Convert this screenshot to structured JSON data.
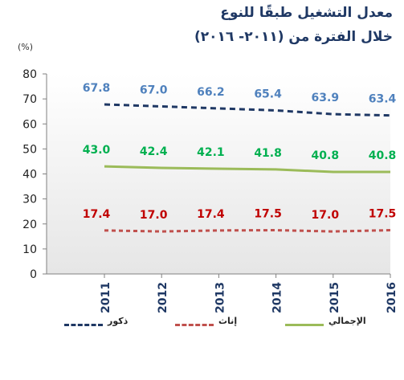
{
  "title": "معدل التشغيل طبقًا للنوع",
  "subtitle": "خلال الفترة من (٢٠١١- ٢٠١٦)",
  "unit": "(%)",
  "colors": {
    "males": "#1f3864",
    "females": "#c0504d",
    "total": "#9bbb59",
    "males_label": "#4f81bd",
    "females_label": "#c00000",
    "total_label": "#00b050"
  },
  "chart_data": {
    "type": "line",
    "categories": [
      "2011",
      "2012",
      "2013",
      "2014",
      "2015",
      "2016"
    ],
    "ylim": [
      0,
      80
    ],
    "yticks": [
      "0",
      "10",
      "20",
      "30",
      "40",
      "50",
      "60",
      "70",
      "80"
    ],
    "series": [
      {
        "name": "ذكور",
        "values": [
          67.8,
          67.0,
          66.2,
          65.4,
          63.9,
          63.4
        ],
        "labels": [
          "67.8",
          "67.0",
          "66.2",
          "65.4",
          "63.9",
          "63.4"
        ],
        "style": "dashed"
      },
      {
        "name": "الإجمالي",
        "values": [
          43.0,
          42.4,
          42.1,
          41.8,
          40.8,
          40.8
        ],
        "labels": [
          "43.0",
          "42.4",
          "42.1",
          "41.8",
          "40.8",
          "40.8"
        ],
        "style": "solid"
      },
      {
        "name": "إناث",
        "values": [
          17.4,
          17.0,
          17.4,
          17.5,
          17.0,
          17.5
        ],
        "labels": [
          "17.4",
          "17.0",
          "17.4",
          "17.5",
          "17.0",
          "17.5"
        ],
        "style": "dashed"
      }
    ],
    "legend": [
      "ذكور",
      "إناث",
      "الإجمالي"
    ],
    "legend_position": "bottom",
    "grid": false
  }
}
